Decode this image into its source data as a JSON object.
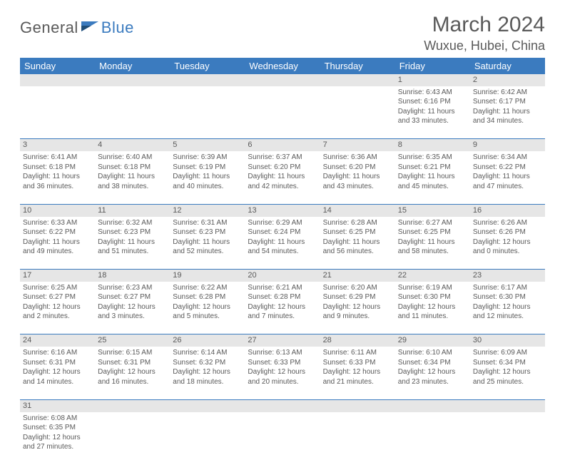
{
  "logo": {
    "text1": "General",
    "text2": "Blue"
  },
  "title": "March 2024",
  "location": "Wuxue, Hubei, China",
  "colors": {
    "header_bg": "#3b7bbf",
    "header_text": "#ffffff",
    "daynum_bg": "#e6e6e6",
    "text": "#5a5a5a",
    "rule": "#3b7bbf",
    "page_bg": "#ffffff"
  },
  "typography": {
    "title_fontsize": 30,
    "location_fontsize": 18,
    "weekday_fontsize": 13,
    "daynum_fontsize": 11,
    "cell_fontsize": 10
  },
  "weekdays": [
    "Sunday",
    "Monday",
    "Tuesday",
    "Wednesday",
    "Thursday",
    "Friday",
    "Saturday"
  ],
  "weeks": [
    [
      null,
      null,
      null,
      null,
      null,
      {
        "n": "1",
        "sr": "6:43 AM",
        "ss": "6:16 PM",
        "dl": "11 hours and 33 minutes."
      },
      {
        "n": "2",
        "sr": "6:42 AM",
        "ss": "6:17 PM",
        "dl": "11 hours and 34 minutes."
      }
    ],
    [
      {
        "n": "3",
        "sr": "6:41 AM",
        "ss": "6:18 PM",
        "dl": "11 hours and 36 minutes."
      },
      {
        "n": "4",
        "sr": "6:40 AM",
        "ss": "6:18 PM",
        "dl": "11 hours and 38 minutes."
      },
      {
        "n": "5",
        "sr": "6:39 AM",
        "ss": "6:19 PM",
        "dl": "11 hours and 40 minutes."
      },
      {
        "n": "6",
        "sr": "6:37 AM",
        "ss": "6:20 PM",
        "dl": "11 hours and 42 minutes."
      },
      {
        "n": "7",
        "sr": "6:36 AM",
        "ss": "6:20 PM",
        "dl": "11 hours and 43 minutes."
      },
      {
        "n": "8",
        "sr": "6:35 AM",
        "ss": "6:21 PM",
        "dl": "11 hours and 45 minutes."
      },
      {
        "n": "9",
        "sr": "6:34 AM",
        "ss": "6:22 PM",
        "dl": "11 hours and 47 minutes."
      }
    ],
    [
      {
        "n": "10",
        "sr": "6:33 AM",
        "ss": "6:22 PM",
        "dl": "11 hours and 49 minutes."
      },
      {
        "n": "11",
        "sr": "6:32 AM",
        "ss": "6:23 PM",
        "dl": "11 hours and 51 minutes."
      },
      {
        "n": "12",
        "sr": "6:31 AM",
        "ss": "6:23 PM",
        "dl": "11 hours and 52 minutes."
      },
      {
        "n": "13",
        "sr": "6:29 AM",
        "ss": "6:24 PM",
        "dl": "11 hours and 54 minutes."
      },
      {
        "n": "14",
        "sr": "6:28 AM",
        "ss": "6:25 PM",
        "dl": "11 hours and 56 minutes."
      },
      {
        "n": "15",
        "sr": "6:27 AM",
        "ss": "6:25 PM",
        "dl": "11 hours and 58 minutes."
      },
      {
        "n": "16",
        "sr": "6:26 AM",
        "ss": "6:26 PM",
        "dl": "12 hours and 0 minutes."
      }
    ],
    [
      {
        "n": "17",
        "sr": "6:25 AM",
        "ss": "6:27 PM",
        "dl": "12 hours and 2 minutes."
      },
      {
        "n": "18",
        "sr": "6:23 AM",
        "ss": "6:27 PM",
        "dl": "12 hours and 3 minutes."
      },
      {
        "n": "19",
        "sr": "6:22 AM",
        "ss": "6:28 PM",
        "dl": "12 hours and 5 minutes."
      },
      {
        "n": "20",
        "sr": "6:21 AM",
        "ss": "6:28 PM",
        "dl": "12 hours and 7 minutes."
      },
      {
        "n": "21",
        "sr": "6:20 AM",
        "ss": "6:29 PM",
        "dl": "12 hours and 9 minutes."
      },
      {
        "n": "22",
        "sr": "6:19 AM",
        "ss": "6:30 PM",
        "dl": "12 hours and 11 minutes."
      },
      {
        "n": "23",
        "sr": "6:17 AM",
        "ss": "6:30 PM",
        "dl": "12 hours and 12 minutes."
      }
    ],
    [
      {
        "n": "24",
        "sr": "6:16 AM",
        "ss": "6:31 PM",
        "dl": "12 hours and 14 minutes."
      },
      {
        "n": "25",
        "sr": "6:15 AM",
        "ss": "6:31 PM",
        "dl": "12 hours and 16 minutes."
      },
      {
        "n": "26",
        "sr": "6:14 AM",
        "ss": "6:32 PM",
        "dl": "12 hours and 18 minutes."
      },
      {
        "n": "27",
        "sr": "6:13 AM",
        "ss": "6:33 PM",
        "dl": "12 hours and 20 minutes."
      },
      {
        "n": "28",
        "sr": "6:11 AM",
        "ss": "6:33 PM",
        "dl": "12 hours and 21 minutes."
      },
      {
        "n": "29",
        "sr": "6:10 AM",
        "ss": "6:34 PM",
        "dl": "12 hours and 23 minutes."
      },
      {
        "n": "30",
        "sr": "6:09 AM",
        "ss": "6:34 PM",
        "dl": "12 hours and 25 minutes."
      }
    ],
    [
      {
        "n": "31",
        "sr": "6:08 AM",
        "ss": "6:35 PM",
        "dl": "12 hours and 27 minutes."
      },
      null,
      null,
      null,
      null,
      null,
      null
    ]
  ],
  "labels": {
    "sunrise": "Sunrise:",
    "sunset": "Sunset:",
    "daylight": "Daylight:"
  }
}
